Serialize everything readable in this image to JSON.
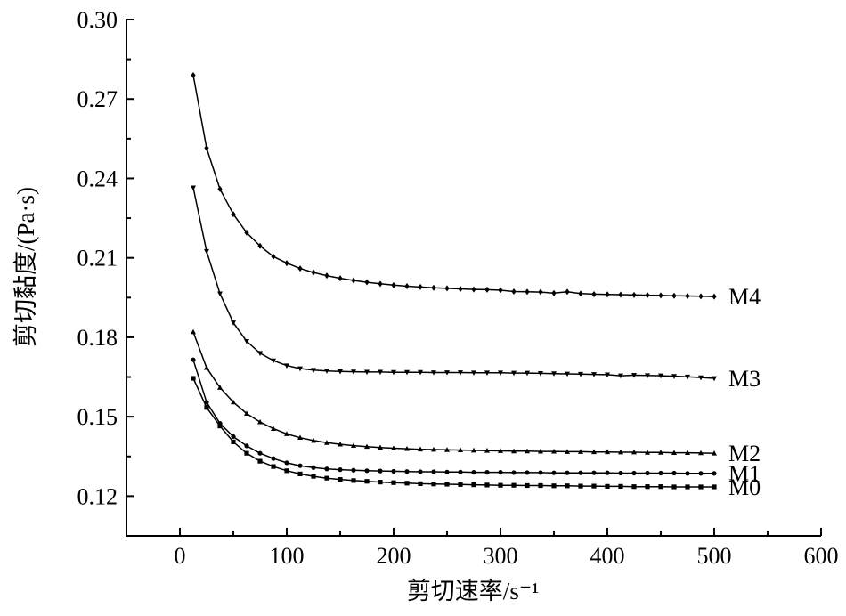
{
  "chart_data": {
    "type": "line",
    "xlabel": "剪切速率/s⁻¹",
    "ylabel": "剪切黏度/(Pa·s)",
    "xlim": [
      -50,
      600
    ],
    "ylim": [
      0.105,
      0.3
    ],
    "x_ticks": [
      0,
      100,
      200,
      300,
      400,
      500,
      600
    ],
    "y_ticks": [
      0.12,
      0.15,
      0.18,
      0.21,
      0.24,
      0.27,
      0.3
    ],
    "x_tick_labels": [
      "0",
      "100",
      "200",
      "300",
      "400",
      "500",
      "600"
    ],
    "y_tick_labels": [
      "0.12",
      "0.15",
      "0.18",
      "0.21",
      "0.24",
      "0.27",
      "0.30"
    ],
    "grid": false,
    "legend": "none",
    "series": [
      {
        "name": "M4",
        "marker": "diamond",
        "x": [
          12.5,
          25,
          37.5,
          50,
          62.5,
          75,
          87.5,
          100,
          112.5,
          125,
          137.5,
          150,
          162.5,
          175,
          187.5,
          200,
          212.5,
          225,
          237.5,
          250,
          262.5,
          275,
          287.5,
          300,
          312.5,
          325,
          337.5,
          350,
          362.5,
          375,
          387.5,
          400,
          412.5,
          425,
          437.5,
          450,
          462.5,
          475,
          487.5,
          500
        ],
        "values": [
          0.279,
          0.2515,
          0.236,
          0.2265,
          0.2195,
          0.2145,
          0.2105,
          0.208,
          0.206,
          0.2045,
          0.2033,
          0.2023,
          0.2015,
          0.2008,
          0.2002,
          0.1997,
          0.1993,
          0.199,
          0.1987,
          0.1985,
          0.1983,
          0.1981,
          0.198,
          0.1978,
          0.1973,
          0.1972,
          0.1971,
          0.1967,
          0.1972,
          0.1965,
          0.1963,
          0.1962,
          0.1961,
          0.196,
          0.1959,
          0.1958,
          0.1957,
          0.1956,
          0.1955,
          0.1954
        ]
      },
      {
        "name": "M3",
        "marker": "triangle-down",
        "x": [
          12.5,
          25,
          37.5,
          50,
          62.5,
          75,
          87.5,
          100,
          112.5,
          125,
          137.5,
          150,
          162.5,
          175,
          187.5,
          200,
          212.5,
          225,
          237.5,
          250,
          262.5,
          275,
          287.5,
          300,
          312.5,
          325,
          337.5,
          350,
          362.5,
          375,
          387.5,
          400,
          412.5,
          425,
          437.5,
          450,
          462.5,
          475,
          487.5,
          500
        ],
        "values": [
          0.2365,
          0.2125,
          0.1965,
          0.1855,
          0.1785,
          0.174,
          0.1712,
          0.1693,
          0.1682,
          0.1676,
          0.1673,
          0.1671,
          0.167,
          0.1669,
          0.1669,
          0.1668,
          0.1668,
          0.1668,
          0.1667,
          0.1667,
          0.1667,
          0.1666,
          0.1666,
          0.1666,
          0.1665,
          0.1665,
          0.1664,
          0.1663,
          0.1662,
          0.1661,
          0.166,
          0.1659,
          0.1655,
          0.1657,
          0.1656,
          0.1655,
          0.1653,
          0.1651,
          0.1648,
          0.1645
        ]
      },
      {
        "name": "M2",
        "marker": "triangle-up",
        "x": [
          12.5,
          25,
          37.5,
          50,
          62.5,
          75,
          87.5,
          100,
          112.5,
          125,
          137.5,
          150,
          162.5,
          175,
          187.5,
          200,
          212.5,
          225,
          237.5,
          250,
          262.5,
          275,
          287.5,
          300,
          312.5,
          325,
          337.5,
          350,
          362.5,
          375,
          387.5,
          400,
          412.5,
          425,
          437.5,
          450,
          462.5,
          475,
          487.5,
          500
        ],
        "values": [
          0.182,
          0.1685,
          0.161,
          0.1555,
          0.1512,
          0.148,
          0.1455,
          0.1435,
          0.1421,
          0.141,
          0.1402,
          0.1396,
          0.1391,
          0.1387,
          0.1384,
          0.1381,
          0.1379,
          0.1377,
          0.1376,
          0.1375,
          0.1374,
          0.1373,
          0.1372,
          0.1371,
          0.137,
          0.137,
          0.1369,
          0.1369,
          0.1368,
          0.1368,
          0.1367,
          0.1367,
          0.1366,
          0.1366,
          0.1365,
          0.1365,
          0.1364,
          0.1364,
          0.1363,
          0.1362
        ]
      },
      {
        "name": "M1",
        "marker": "circle",
        "x": [
          12.5,
          25,
          37.5,
          50,
          62.5,
          75,
          87.5,
          100,
          112.5,
          125,
          137.5,
          150,
          162.5,
          175,
          187.5,
          200,
          212.5,
          225,
          237.5,
          250,
          262.5,
          275,
          287.5,
          300,
          312.5,
          325,
          337.5,
          350,
          362.5,
          375,
          387.5,
          400,
          412.5,
          425,
          437.5,
          450,
          462.5,
          475,
          487.5,
          500
        ],
        "values": [
          0.1715,
          0.1555,
          0.1475,
          0.1425,
          0.139,
          0.1362,
          0.1342,
          0.1326,
          0.1315,
          0.1308,
          0.1303,
          0.13,
          0.1298,
          0.1296,
          0.1295,
          0.1294,
          0.1293,
          0.1292,
          0.1292,
          0.1291,
          0.1291,
          0.129,
          0.129,
          0.129,
          0.1289,
          0.1289,
          0.1289,
          0.1288,
          0.1288,
          0.1288,
          0.1288,
          0.1288,
          0.1287,
          0.1287,
          0.1287,
          0.1287,
          0.1287,
          0.1286,
          0.1286,
          0.1286
        ]
      },
      {
        "name": "M0",
        "marker": "square",
        "x": [
          12.5,
          25,
          37.5,
          50,
          62.5,
          75,
          87.5,
          100,
          112.5,
          125,
          137.5,
          150,
          162.5,
          175,
          187.5,
          200,
          212.5,
          225,
          237.5,
          250,
          262.5,
          275,
          287.5,
          300,
          312.5,
          325,
          337.5,
          350,
          362.5,
          375,
          387.5,
          400,
          412.5,
          425,
          437.5,
          450,
          462.5,
          475,
          487.5,
          500
        ],
        "values": [
          0.1645,
          0.1535,
          0.1465,
          0.1405,
          0.1362,
          0.1332,
          0.1312,
          0.1296,
          0.1284,
          0.1275,
          0.1268,
          0.1263,
          0.1259,
          0.1256,
          0.1253,
          0.1251,
          0.1249,
          0.1247,
          0.1246,
          0.1245,
          0.1244,
          0.1243,
          0.1242,
          0.1241,
          0.1241,
          0.124,
          0.124,
          0.1239,
          0.1239,
          0.1238,
          0.1238,
          0.1237,
          0.1237,
          0.1236,
          0.1236,
          0.1236,
          0.1235,
          0.1235,
          0.1235,
          0.1235
        ]
      }
    ]
  }
}
